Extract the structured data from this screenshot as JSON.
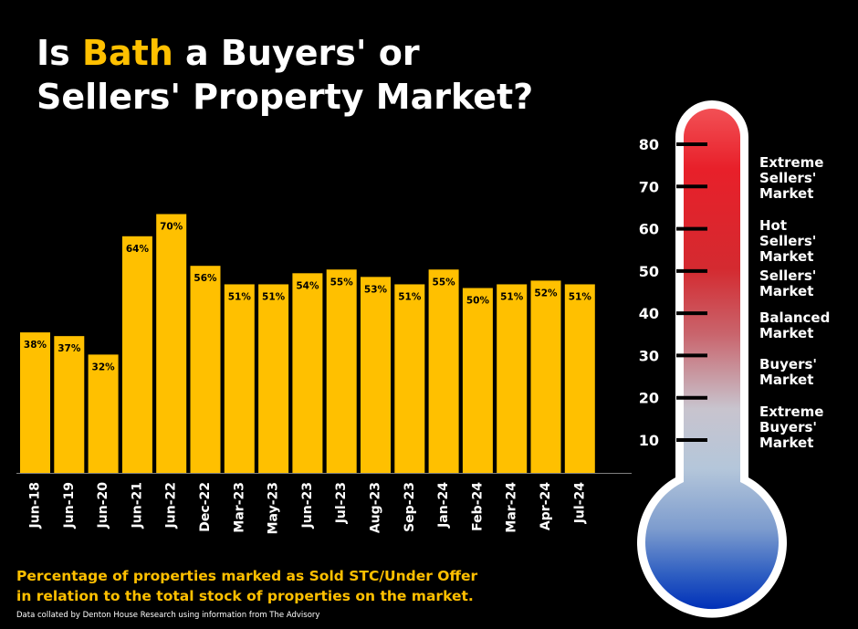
{
  "title": {
    "line1_prefix": "Is ",
    "line1_highlight": "Bath",
    "line1_suffix": " a Buyers' or",
    "line2": "Sellers' Property Market?"
  },
  "colors": {
    "background": "#000000",
    "bar": "#FFC000",
    "highlight": "#FFC000",
    "thermometer_top": "#E8202A",
    "thermometer_bottom": "#0033BB"
  },
  "chart_data": {
    "type": "bar",
    "categories": [
      "Jun-18",
      "Jun-19",
      "Jun-20",
      "Jun-21",
      "Jun-22",
      "Dec-22",
      "Mar-23",
      "May-23",
      "Jun-23",
      "Jul-23",
      "Aug-23",
      "Sep-23",
      "Jan-24",
      "Feb-24",
      "Mar-24",
      "Apr-24",
      "Jul-24"
    ],
    "values": [
      38,
      37,
      32,
      64,
      70,
      56,
      51,
      51,
      54,
      55,
      53,
      51,
      55,
      50,
      51,
      52,
      51
    ],
    "data_labels": [
      "38%",
      "37%",
      "32%",
      "64%",
      "70%",
      "56%",
      "51%",
      "51%",
      "54%",
      "55%",
      "53%",
      "51%",
      "55%",
      "50%",
      "51%",
      "52%",
      "51%"
    ],
    "ylim": [
      0,
      80
    ],
    "grid": false
  },
  "caption": {
    "line1": "Percentage of properties marked as Sold STC/Under Offer",
    "line2": "in relation to the total stock of properties on the market."
  },
  "source": "Data collated by Denton House Research using information from The Advisory",
  "thermometer": {
    "ticks": [
      "80",
      "70",
      "60",
      "50",
      "40",
      "30",
      "20",
      "10"
    ],
    "tick_values": [
      80,
      70,
      60,
      50,
      40,
      30,
      20,
      10
    ],
    "zones": [
      {
        "lines": [
          "Extreme",
          "Sellers'",
          "Market"
        ],
        "value": 72
      },
      {
        "lines": [
          "Hot",
          "Sellers'",
          "Market"
        ],
        "value": 57
      },
      {
        "lines": [
          "Sellers'",
          "Market"
        ],
        "value": 47
      },
      {
        "lines": [
          "Balanced",
          "Market"
        ],
        "value": 37
      },
      {
        "lines": [
          "Buyers'",
          "Market"
        ],
        "value": 26
      },
      {
        "lines": [
          "Extreme",
          "Buyers'",
          "Market"
        ],
        "value": 13
      }
    ]
  }
}
